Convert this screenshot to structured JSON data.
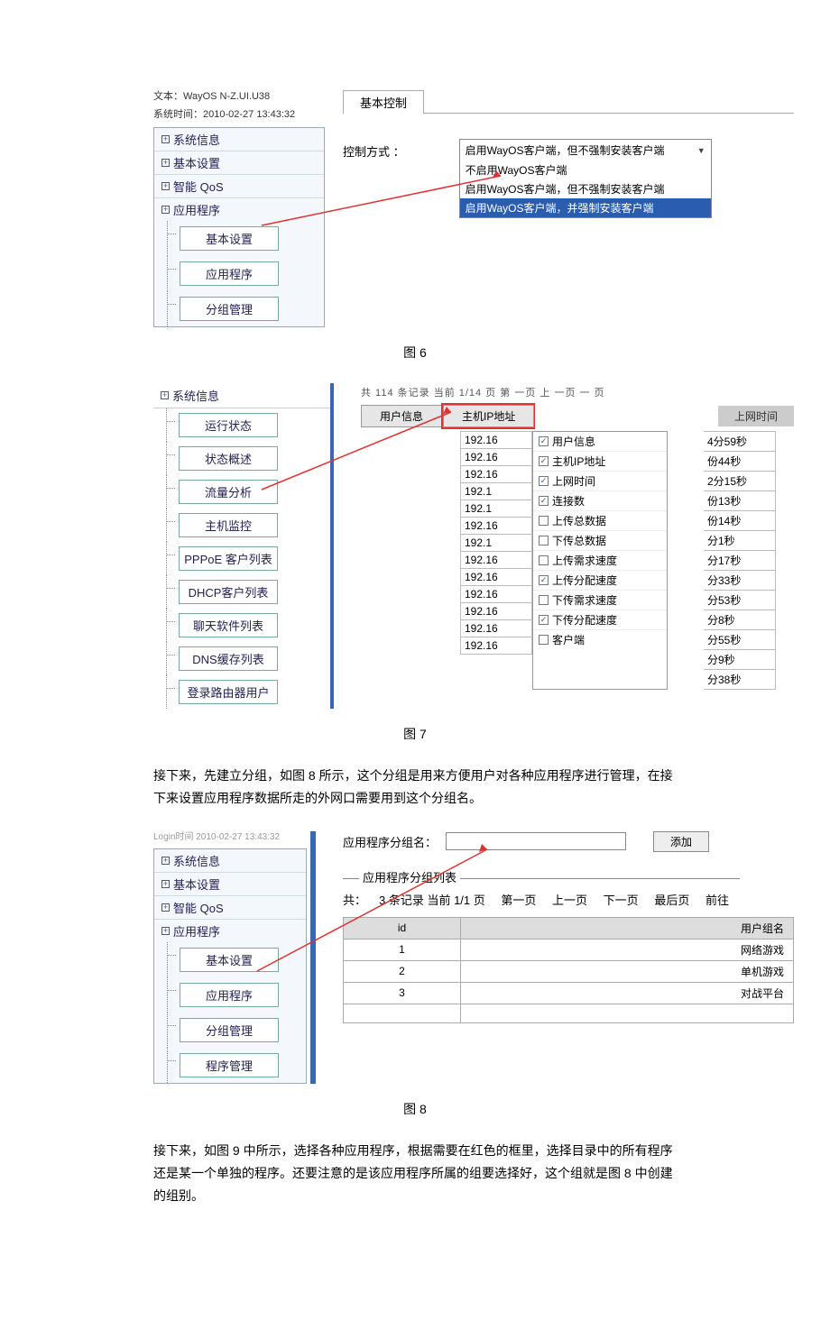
{
  "fig6": {
    "version_label": "文本：WayOS N-Z.UI.U38",
    "time_label": "系统时间：2010-02-27 13:43:32",
    "nav": [
      "系统信息",
      "基本设置",
      "智能 QoS",
      "应用程序"
    ],
    "sub_nav": [
      "基本设置",
      "应用程序",
      "分组管理"
    ],
    "panel_title": "基本控制",
    "ctrl_label": "控制方式 ：",
    "dd_selected": "启用WayOS客户端，但不强制安装客户端",
    "dd_options": [
      "不启用WayOS客户端",
      "启用WayOS客户端，但不强制安装客户端",
      "启用WayOS客户端，并强制安装客户端"
    ]
  },
  "caption6": "图 6",
  "fig7": {
    "nav_head": "系统信息",
    "sub_nav": [
      "运行状态",
      "状态概述",
      "流量分析",
      "主机监控",
      "PPPoE 客户列表",
      "DHCP客户列表",
      "聊天软件列表",
      "DNS缓存列表",
      "登录路由器用户"
    ],
    "crumb": "共   114 条记录 当前 1/14 页    第 一页   上 一页  一  页",
    "tab1": "用户信息",
    "tab2": "主机IP地址",
    "head_right": "上网时间",
    "ips": [
      "192.16",
      "192.16",
      "192.16",
      "192.1",
      "192.1",
      "192.16",
      "192.1",
      "192.16",
      "192.16",
      "192.16",
      "192.16",
      "192.16",
      "192.16"
    ],
    "menu": [
      {
        "c": true,
        "l": "用户信息"
      },
      {
        "c": true,
        "l": "主机IP地址"
      },
      {
        "c": true,
        "l": "上网时间"
      },
      {
        "c": true,
        "l": "连接数"
      },
      {
        "c": false,
        "l": "上传总数据"
      },
      {
        "c": false,
        "l": "下传总数据"
      },
      {
        "c": false,
        "l": "上传需求速度"
      },
      {
        "c": true,
        "l": "上传分配速度"
      },
      {
        "c": false,
        "l": "下传需求速度"
      },
      {
        "c": true,
        "l": "下传分配速度"
      },
      {
        "c": false,
        "l": "客户端"
      }
    ],
    "times": [
      "4分59秒",
      "份44秒",
      "2分15秒",
      "份13秒",
      "份14秒",
      "分1秒",
      "分17秒",
      "分33秒",
      "分53秒",
      "分8秒",
      "分55秒",
      "分9秒",
      "分38秒"
    ]
  },
  "caption7": "图 7",
  "para7": "接下来，先建立分组，如图 8 所示，这个分组是用来方便用户对各种应用程序进行管理，在接下来设置应用程序数据所走的外网口需要用到这个分组名。",
  "fig8": {
    "timestamp": "Login时间 2010-02-27 13:43:32",
    "nav": [
      "系统信息",
      "基本设置",
      "智能 QoS",
      "应用程序"
    ],
    "sub_nav": [
      "基本设置",
      "应用程序",
      "分组管理",
      "程序管理"
    ],
    "form_label": "应用程序分组名：",
    "add_btn": "添加",
    "fieldset": "应用程序分组列表",
    "pager_prefix": "共：",
    "pager_count": "3 条记录 当前 1/1 页",
    "pager_links": [
      "第一页",
      "上一页",
      "下一页",
      "最后页",
      "前往"
    ],
    "cols": [
      "id",
      "用户组名"
    ],
    "rows": [
      [
        "1",
        "网络游戏"
      ],
      [
        "2",
        "单机游戏"
      ],
      [
        "3",
        "对战平台"
      ]
    ]
  },
  "caption8": "图 8",
  "para8": "接下来，如图 9 中所示，选择各种应用程序，根据需要在红色的框里，选择目录中的所有程序还是某一个单独的程序。还要注意的是该应用程序所属的组要选择好，这个组就是图 8 中创建的组别。"
}
